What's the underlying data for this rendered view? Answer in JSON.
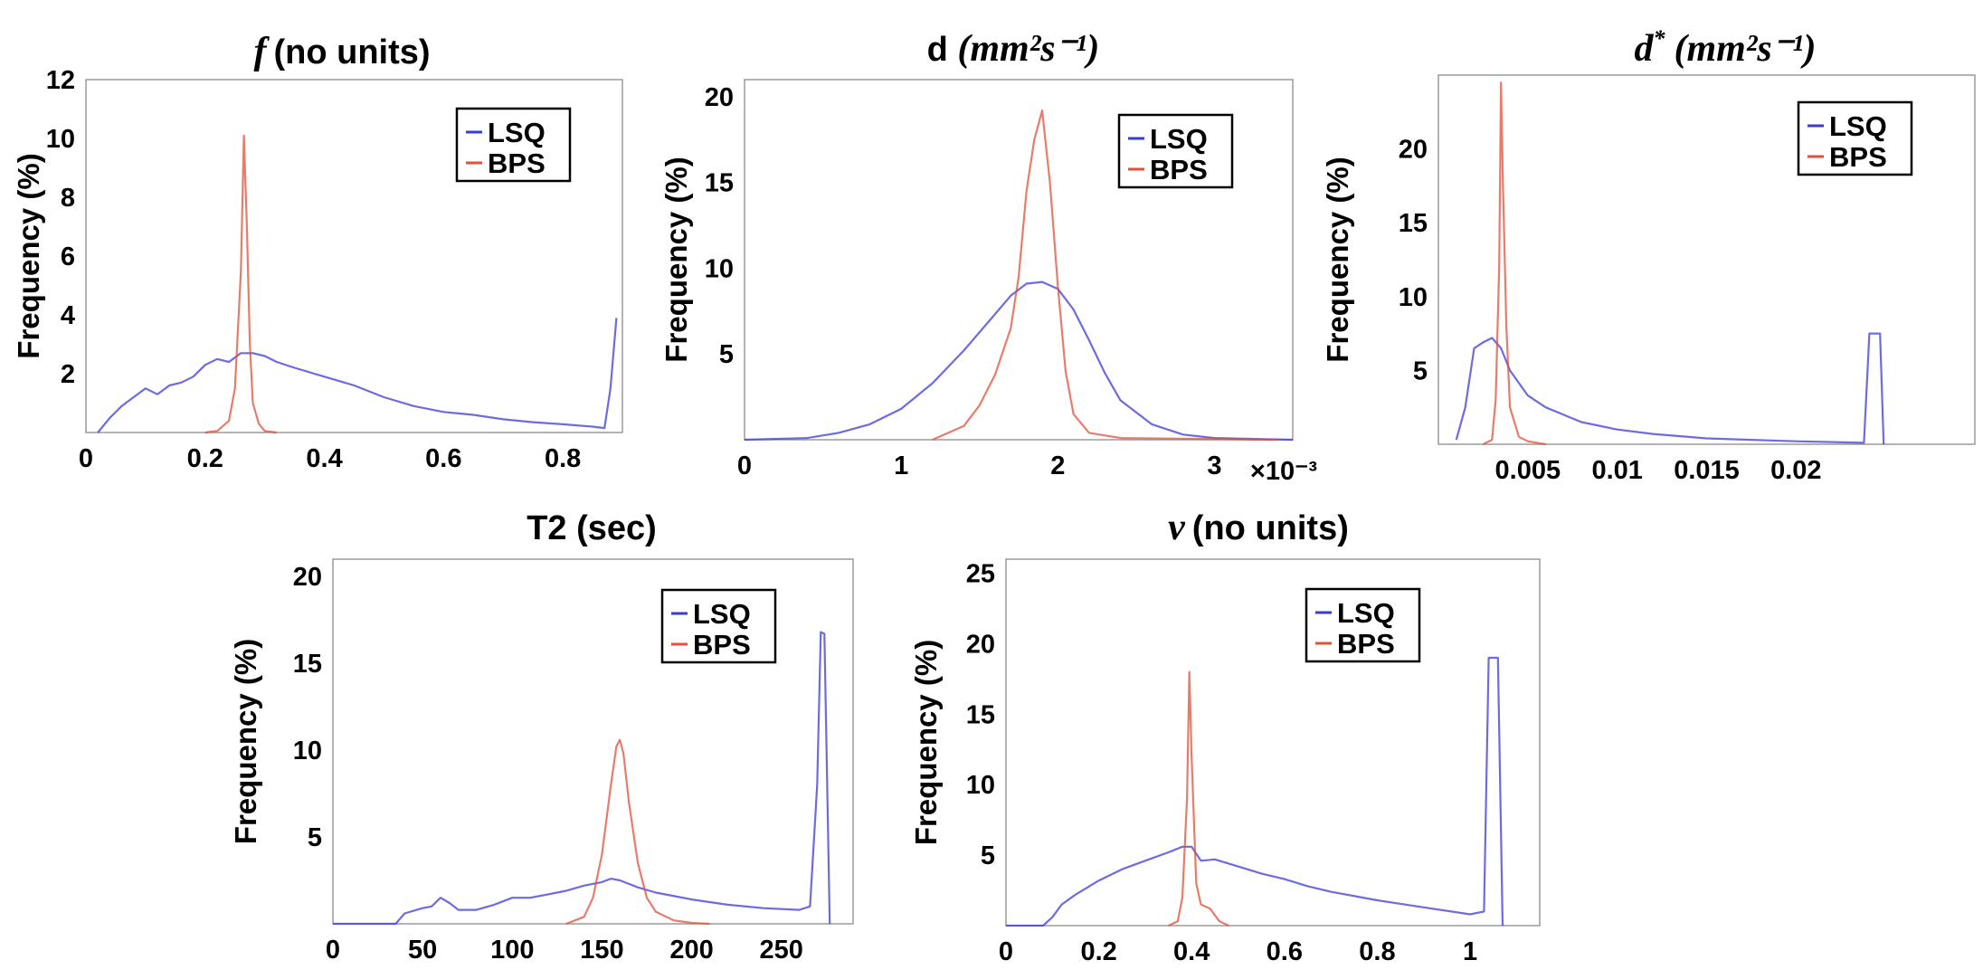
{
  "legend_labels": [
    "LSQ",
    "BPS"
  ],
  "colors": {
    "LSQ": "#3b3bd6",
    "BPS": "#e0503a"
  },
  "ylabel": "Frequency (%)",
  "chart_data": [
    {
      "id": "f",
      "type": "line",
      "title": "(no units)",
      "title_symbol": "f",
      "title_sup": "",
      "xlabel": "",
      "ylabel": "Frequency (%)",
      "xlim": [
        0,
        0.9
      ],
      "ylim": [
        0,
        12
      ],
      "xticks": [
        0,
        0.2,
        0.4,
        0.6,
        0.8
      ],
      "xtick_labels": [
        "0",
        "0.2",
        "0.4",
        "0.6",
        "0.8"
      ],
      "yticks": [
        2,
        4,
        6,
        8,
        10,
        12
      ],
      "ytick_labels": [
        "2",
        "4",
        "6",
        "8",
        "10",
        "12"
      ],
      "exponent_label": "",
      "series": [
        {
          "name": "LSQ",
          "x": [
            0.02,
            0.04,
            0.06,
            0.08,
            0.1,
            0.12,
            0.14,
            0.16,
            0.18,
            0.2,
            0.22,
            0.24,
            0.26,
            0.28,
            0.3,
            0.32,
            0.35,
            0.4,
            0.45,
            0.5,
            0.55,
            0.6,
            0.65,
            0.7,
            0.75,
            0.8,
            0.85,
            0.87,
            0.88,
            0.89
          ],
          "y": [
            0,
            0.5,
            0.9,
            1.2,
            1.5,
            1.3,
            1.6,
            1.7,
            1.9,
            2.3,
            2.5,
            2.4,
            2.7,
            2.7,
            2.6,
            2.4,
            2.2,
            1.9,
            1.6,
            1.2,
            0.9,
            0.7,
            0.6,
            0.45,
            0.35,
            0.28,
            0.2,
            0.15,
            1.5,
            3.9
          ]
        },
        {
          "name": "BPS",
          "x": [
            0.2,
            0.22,
            0.24,
            0.25,
            0.26,
            0.265,
            0.27,
            0.275,
            0.28,
            0.29,
            0.3,
            0.32
          ],
          "y": [
            0,
            0.05,
            0.4,
            1.5,
            5.5,
            10.1,
            7.0,
            3.0,
            1.0,
            0.3,
            0.05,
            0
          ]
        }
      ]
    },
    {
      "id": "d",
      "type": "line",
      "title": "d",
      "title_symbol": "",
      "title_sup": "(mm²s⁻¹)",
      "xlabel": "",
      "ylabel": "Frequency (%)",
      "xlim": [
        0,
        3.5
      ],
      "ylim": [
        0,
        21
      ],
      "xticks": [
        0,
        1,
        2,
        3
      ],
      "xtick_labels": [
        "0",
        "1",
        "2",
        "3"
      ],
      "yticks": [
        5,
        10,
        15,
        20
      ],
      "ytick_labels": [
        "5",
        "10",
        "15",
        "20"
      ],
      "exponent_label": "×10⁻³",
      "series": [
        {
          "name": "LSQ",
          "x": [
            0,
            0.4,
            0.6,
            0.8,
            1.0,
            1.2,
            1.4,
            1.55,
            1.7,
            1.8,
            1.9,
            2.0,
            2.1,
            2.2,
            2.3,
            2.4,
            2.6,
            2.8,
            3.0,
            3.5
          ],
          "y": [
            0,
            0.1,
            0.4,
            0.9,
            1.8,
            3.3,
            5.2,
            6.8,
            8.4,
            9.1,
            9.2,
            8.8,
            7.6,
            5.8,
            3.9,
            2.3,
            0.9,
            0.3,
            0.1,
            0
          ]
        },
        {
          "name": "BPS",
          "x": [
            1.2,
            1.4,
            1.5,
            1.6,
            1.7,
            1.75,
            1.8,
            1.85,
            1.9,
            1.95,
            2.0,
            2.05,
            2.1,
            2.2,
            2.4,
            3.4
          ],
          "y": [
            0,
            0.8,
            2.0,
            3.8,
            6.5,
            9.5,
            14.5,
            17.5,
            19.2,
            15.0,
            9.0,
            4.0,
            1.5,
            0.4,
            0.1,
            0
          ]
        }
      ]
    },
    {
      "id": "dstar",
      "type": "line",
      "title": "(mm²s⁻¹)",
      "title_symbol": "d",
      "title_sup": "*",
      "xlabel": "",
      "ylabel": "Frequency (%)",
      "xlim": [
        0,
        0.03
      ],
      "ylim": [
        0,
        25
      ],
      "xticks": [
        0.005,
        0.01,
        0.015,
        0.02
      ],
      "xtick_labels": [
        "0.005",
        "0.01",
        "0.015",
        "0.02"
      ],
      "yticks": [
        5,
        10,
        15,
        20
      ],
      "ytick_labels": [
        "5",
        "10",
        "15",
        "20"
      ],
      "exponent_label": "",
      "series": [
        {
          "name": "LSQ",
          "x": [
            0.001,
            0.0015,
            0.002,
            0.0025,
            0.003,
            0.0035,
            0.004,
            0.005,
            0.006,
            0.007,
            0.008,
            0.01,
            0.012,
            0.015,
            0.02,
            0.0238,
            0.0241,
            0.0243,
            0.0247,
            0.0249
          ],
          "y": [
            0.3,
            2.5,
            6.5,
            6.9,
            7.2,
            6.5,
            5.0,
            3.3,
            2.5,
            2.0,
            1.5,
            1.0,
            0.7,
            0.4,
            0.2,
            0.1,
            7.5,
            7.5,
            7.5,
            0
          ]
        },
        {
          "name": "BPS",
          "x": [
            0.0025,
            0.003,
            0.0032,
            0.0034,
            0.0035,
            0.0036,
            0.0038,
            0.004,
            0.0045,
            0.005,
            0.006
          ],
          "y": [
            0,
            0.3,
            3.0,
            12.0,
            24.5,
            18.0,
            8.0,
            2.5,
            0.5,
            0.2,
            0
          ]
        }
      ]
    },
    {
      "id": "t2",
      "type": "line",
      "title": "T2 (sec)",
      "title_symbol": "",
      "title_sup": "",
      "xlabel": "",
      "ylabel": "Frequency (%)",
      "xlim": [
        0,
        290
      ],
      "ylim": [
        0,
        21
      ],
      "xticks": [
        0,
        50,
        100,
        150,
        200,
        250
      ],
      "xtick_labels": [
        "0",
        "50",
        "100",
        "150",
        "200",
        "250"
      ],
      "yticks": [
        5,
        10,
        15,
        20
      ],
      "ytick_labels": [
        "5",
        "10",
        "15",
        "20"
      ],
      "exponent_label": "",
      "series": [
        {
          "name": "LSQ",
          "x": [
            0,
            25,
            35,
            40,
            50,
            55,
            60,
            65,
            70,
            80,
            90,
            100,
            110,
            120,
            130,
            140,
            150,
            155,
            160,
            170,
            180,
            200,
            220,
            240,
            260,
            266,
            270,
            272,
            274,
            277
          ],
          "y": [
            0,
            0,
            0,
            0.6,
            0.9,
            1.0,
            1.5,
            1.2,
            0.8,
            0.8,
            1.1,
            1.5,
            1.5,
            1.7,
            1.9,
            2.2,
            2.4,
            2.6,
            2.5,
            2.1,
            1.8,
            1.4,
            1.1,
            0.9,
            0.8,
            1.0,
            8.0,
            16.8,
            16.7,
            0
          ]
        },
        {
          "name": "BPS",
          "x": [
            130,
            140,
            145,
            150,
            155,
            158,
            160,
            162,
            165,
            170,
            175,
            180,
            190,
            200,
            210
          ],
          "y": [
            0,
            0.4,
            1.5,
            4.0,
            8.0,
            10.2,
            10.6,
            9.8,
            7.0,
            3.5,
            1.5,
            0.7,
            0.2,
            0.05,
            0
          ]
        }
      ]
    },
    {
      "id": "v",
      "type": "line",
      "title": "(no units)",
      "title_symbol": "v",
      "title_sup": "",
      "xlabel": "",
      "ylabel": "Frequency (%)",
      "xlim": [
        0,
        1.15
      ],
      "ylim": [
        0,
        26
      ],
      "xticks": [
        0,
        0.2,
        0.4,
        0.6,
        0.8,
        1
      ],
      "xtick_labels": [
        "0",
        "0.2",
        "0.4",
        "0.6",
        "0.8",
        "1"
      ],
      "yticks": [
        5,
        10,
        15,
        20,
        25
      ],
      "ytick_labels": [
        "5",
        "10",
        "15",
        "20",
        "25"
      ],
      "exponent_label": "",
      "series": [
        {
          "name": "LSQ",
          "x": [
            0,
            0.08,
            0.1,
            0.12,
            0.15,
            0.2,
            0.25,
            0.3,
            0.35,
            0.38,
            0.4,
            0.42,
            0.45,
            0.5,
            0.55,
            0.6,
            0.65,
            0.7,
            0.8,
            0.9,
            1.0,
            1.03,
            1.04,
            1.06,
            1.07
          ],
          "y": [
            0,
            0,
            0.6,
            1.5,
            2.2,
            3.2,
            4.0,
            4.6,
            5.2,
            5.6,
            5.6,
            4.6,
            4.7,
            4.2,
            3.7,
            3.3,
            2.8,
            2.4,
            1.8,
            1.3,
            0.8,
            1.0,
            19.0,
            19.0,
            0
          ]
        },
        {
          "name": "BPS",
          "x": [
            0.35,
            0.37,
            0.38,
            0.39,
            0.395,
            0.4,
            0.41,
            0.42,
            0.44,
            0.46,
            0.48
          ],
          "y": [
            0,
            0.3,
            2.0,
            9.0,
            18.0,
            12.0,
            3.0,
            1.5,
            1.2,
            0.3,
            0
          ]
        }
      ]
    }
  ]
}
